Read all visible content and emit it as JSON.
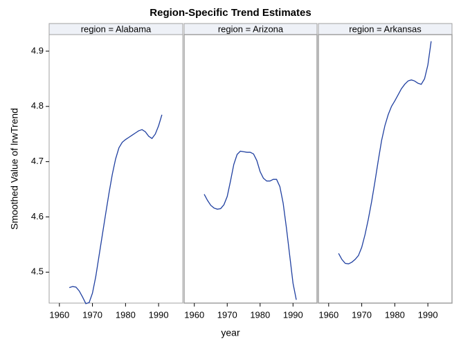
{
  "title": "Region-Specific Trend Estimates",
  "x_label": "year",
  "y_label": "Smoothed Value of lrwTrend",
  "chart_data": [
    {
      "type": "line",
      "title": "region = Alabama",
      "color": "#1f3fa0",
      "x": [
        1963,
        1964,
        1965,
        1966,
        1967,
        1968,
        1969,
        1970,
        1971,
        1972,
        1973,
        1974,
        1975,
        1976,
        1977,
        1978,
        1979,
        1980,
        1981,
        1982,
        1983,
        1984,
        1985,
        1986,
        1987,
        1988,
        1989,
        1990,
        1991
      ],
      "values": [
        4.472,
        4.474,
        4.473,
        4.466,
        4.455,
        4.443,
        4.445,
        4.462,
        4.492,
        4.53,
        4.568,
        4.606,
        4.643,
        4.677,
        4.705,
        4.725,
        4.735,
        4.74,
        4.744,
        4.748,
        4.752,
        4.756,
        4.758,
        4.754,
        4.746,
        4.742,
        4.75,
        4.765,
        4.785
      ],
      "xlim": [
        1956.9,
        1997.3
      ],
      "ylim": [
        4.444,
        4.93
      ],
      "xticks": [
        1960,
        1970,
        1980,
        1990
      ],
      "yticks": [
        4.5,
        4.6,
        4.7,
        4.8,
        4.9
      ]
    },
    {
      "type": "line",
      "title": "region = Arizona",
      "color": "#1f3fa0",
      "x": [
        1963,
        1964,
        1965,
        1966,
        1967,
        1968,
        1969,
        1970,
        1971,
        1972,
        1973,
        1974,
        1975,
        1976,
        1977,
        1978,
        1979,
        1980,
        1981,
        1982,
        1983,
        1984,
        1985,
        1986,
        1987,
        1988,
        1989,
        1990,
        1991
      ],
      "values": [
        4.641,
        4.63,
        4.621,
        4.616,
        4.614,
        4.615,
        4.622,
        4.637,
        4.665,
        4.695,
        4.713,
        4.719,
        4.718,
        4.717,
        4.717,
        4.714,
        4.702,
        4.682,
        4.67,
        4.665,
        4.665,
        4.668,
        4.668,
        4.655,
        4.625,
        4.58,
        4.53,
        4.48,
        4.45
      ],
      "xlim": [
        1956.9,
        1997.3
      ],
      "ylim": [
        4.444,
        4.93
      ],
      "xticks": [
        1960,
        1970,
        1980,
        1990
      ]
    },
    {
      "type": "line",
      "title": "region = Arkansas",
      "color": "#1f3fa0",
      "x": [
        1963,
        1964,
        1965,
        1966,
        1967,
        1968,
        1969,
        1970,
        1971,
        1972,
        1973,
        1974,
        1975,
        1976,
        1977,
        1978,
        1979,
        1980,
        1981,
        1982,
        1983,
        1984,
        1985,
        1986,
        1987,
        1988,
        1989,
        1990,
        1991
      ],
      "values": [
        4.534,
        4.523,
        4.516,
        4.515,
        4.518,
        4.523,
        4.53,
        4.545,
        4.568,
        4.596,
        4.628,
        4.664,
        4.702,
        4.738,
        4.765,
        4.785,
        4.8,
        4.81,
        4.821,
        4.832,
        4.84,
        4.846,
        4.848,
        4.846,
        4.842,
        4.84,
        4.85,
        4.875,
        4.918
      ],
      "xlim": [
        1956.9,
        1997.3
      ],
      "ylim": [
        4.444,
        4.93
      ],
      "xticks": [
        1960,
        1970,
        1980,
        1990
      ]
    }
  ]
}
